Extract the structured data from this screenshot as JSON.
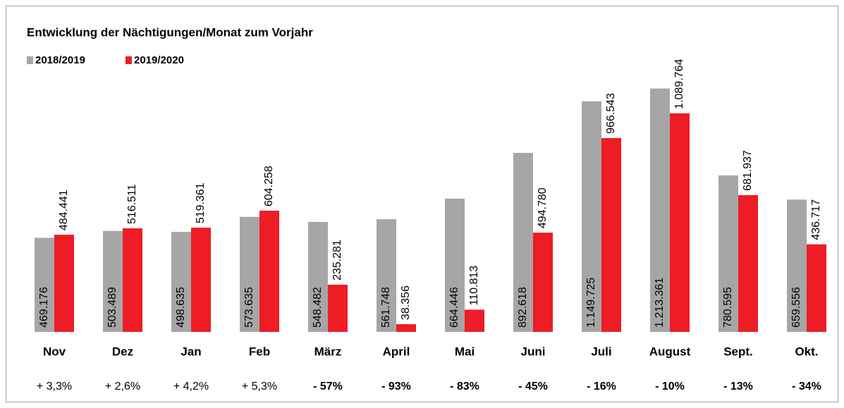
{
  "chart_data": {
    "type": "bar",
    "title": "Entwicklung der Nächtigungen/Monat zum Vorjahr",
    "categories": [
      "Nov",
      "Dez",
      "Jan",
      "Feb",
      "März",
      "April",
      "Mai",
      "Juni",
      "Juli",
      "August",
      "Sept.",
      "Okt."
    ],
    "series": [
      {
        "name": "2018/2019",
        "color": "#a6a6a6",
        "values": [
          469176,
          503489,
          498635,
          573635,
          548482,
          561748,
          664446,
          892618,
          1149725,
          1213361,
          780595,
          659556
        ],
        "value_labels": [
          "469.176",
          "503.489",
          "498.635",
          "573.635",
          "548.482",
          "561.748",
          "664.446",
          "892.618",
          "1.149.725",
          "1.213.361",
          "780.595",
          "659.556"
        ]
      },
      {
        "name": "2019/2020",
        "color": "#ee1c25",
        "values": [
          484441,
          516511,
          519361,
          604258,
          235281,
          38356,
          110813,
          494780,
          966543,
          1089764,
          681937,
          436717
        ],
        "value_labels": [
          "484.441",
          "516.511",
          "519.361",
          "604.258",
          "235.281",
          "38.356",
          "110.813",
          "494.780",
          "966.543",
          "1.089.764",
          "681.937",
          "436.717"
        ]
      }
    ],
    "changes": [
      "+ 3,3%",
      "+ 2,6%",
      "+ 4,2%",
      "+ 5,3%",
      "- 57%",
      "- 93%",
      "- 83%",
      "- 45%",
      "- 16%",
      "- 10%",
      "- 13%",
      "- 34%"
    ],
    "change_colors": [
      "#000000",
      "#000000",
      "#000000",
      "#000000",
      "#ee1c25",
      "#ee1c25",
      "#ee1c25",
      "#ee1c25",
      "#ee1c25",
      "#ee1c25",
      "#ee1c25",
      "#ee1c25"
    ],
    "ylim": [
      0,
      1300000
    ]
  }
}
